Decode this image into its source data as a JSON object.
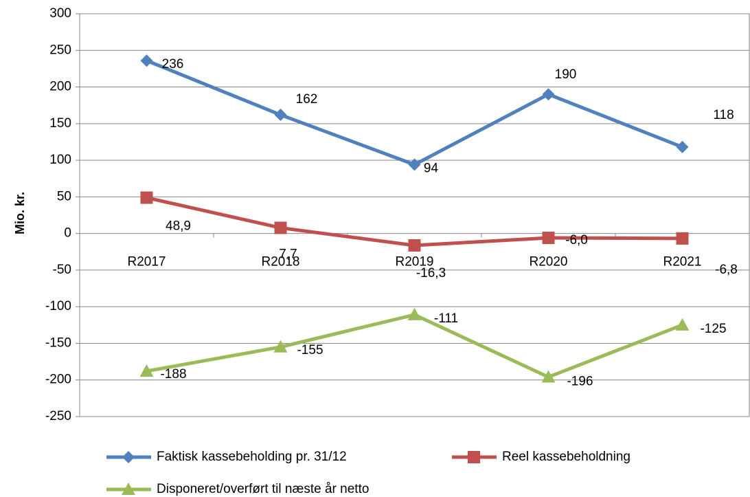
{
  "chart_data": {
    "type": "line",
    "y_label": "Mio. kr.",
    "categories": [
      "R2017",
      "R2018",
      "R2019",
      "R2020",
      "R2021"
    ],
    "series": [
      {
        "name": "Faktisk kassebeholding pr. 31/12",
        "color": "#4f81bd",
        "marker": "diamond",
        "values": [
          236,
          162,
          94,
          190,
          118
        ]
      },
      {
        "name": "Reel kassebeholdning",
        "color": "#c0504d",
        "marker": "square",
        "values": [
          48.9,
          7.7,
          -16.3,
          -6.0,
          -6.8
        ],
        "value_labels": [
          "48,9",
          "7,7",
          "-16,3",
          "-6,0",
          "-6,8"
        ]
      },
      {
        "name": "Disponeret/overført til næste år netto",
        "color": "#9bbb59",
        "marker": "triangle",
        "values": [
          -188,
          -155,
          -111,
          -196,
          -125
        ]
      }
    ],
    "ylim": [
      -250,
      300
    ],
    "yticks": [
      -250,
      -200,
      -150,
      -100,
      -50,
      0,
      50,
      100,
      150,
      200,
      250,
      300
    ],
    "grid": true,
    "legend": "bottom"
  }
}
